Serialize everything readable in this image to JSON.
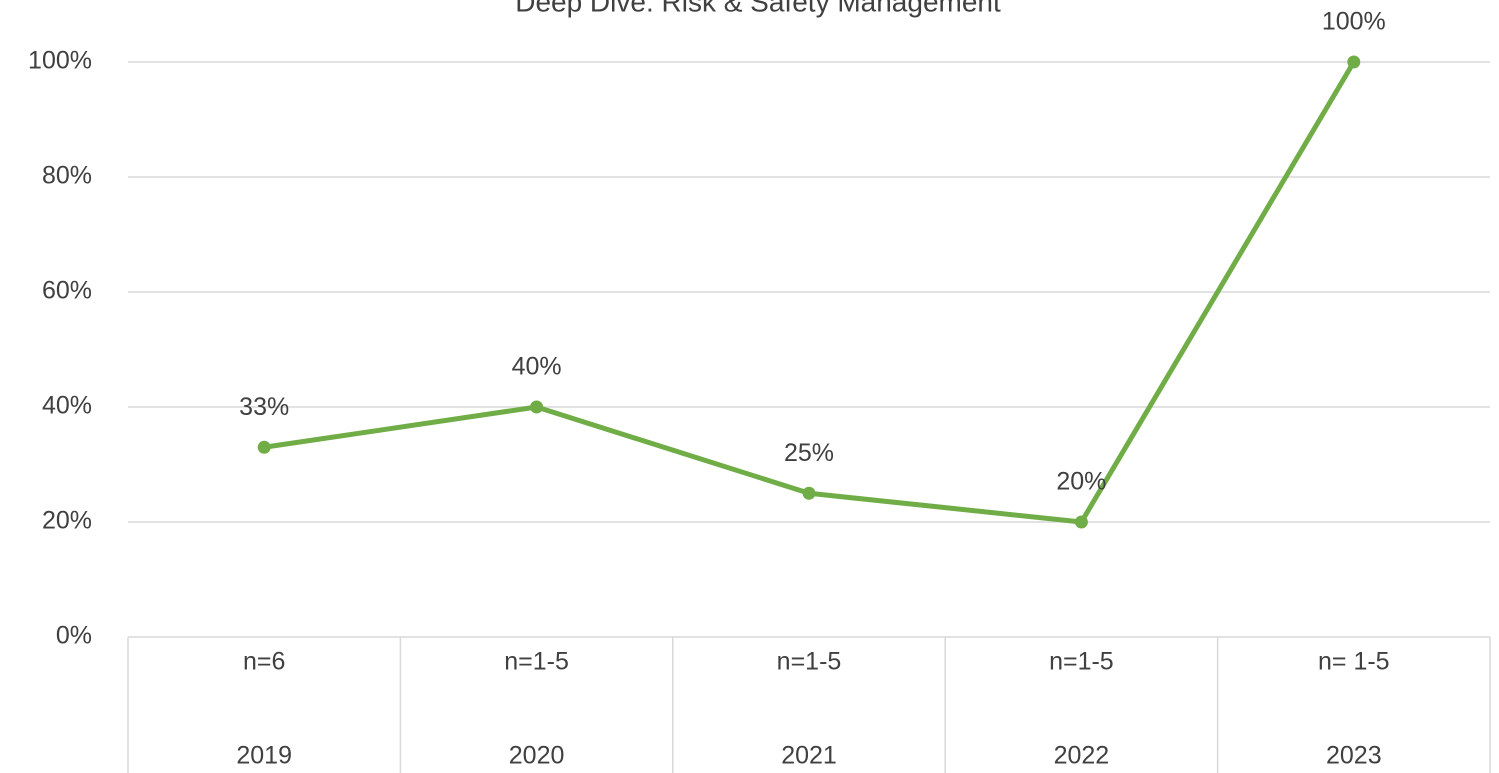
{
  "chart_data": {
    "type": "line",
    "title": "Deep Dive: Risk & Safety Management",
    "categories": [
      "2019",
      "2020",
      "2021",
      "2022",
      "2023"
    ],
    "sample_sizes": [
      "n=6",
      "n=1-5",
      "n=1-5",
      "n=1-5",
      "n= 1-5"
    ],
    "series": [
      {
        "name": "Risk & Safety Management",
        "color": "#70ad47",
        "values": [
          33,
          40,
          25,
          20,
          100
        ],
        "value_labels": [
          "33%",
          "40%",
          "25%",
          "20%",
          "100%"
        ]
      }
    ],
    "ylim": [
      0,
      100
    ],
    "yticks": [
      {
        "value": 0,
        "label": "0%"
      },
      {
        "value": 20,
        "label": "20%"
      },
      {
        "value": 40,
        "label": "40%"
      },
      {
        "value": 60,
        "label": "60%"
      },
      {
        "value": 80,
        "label": "80%"
      },
      {
        "value": 100,
        "label": "100%"
      }
    ],
    "grid": true
  }
}
